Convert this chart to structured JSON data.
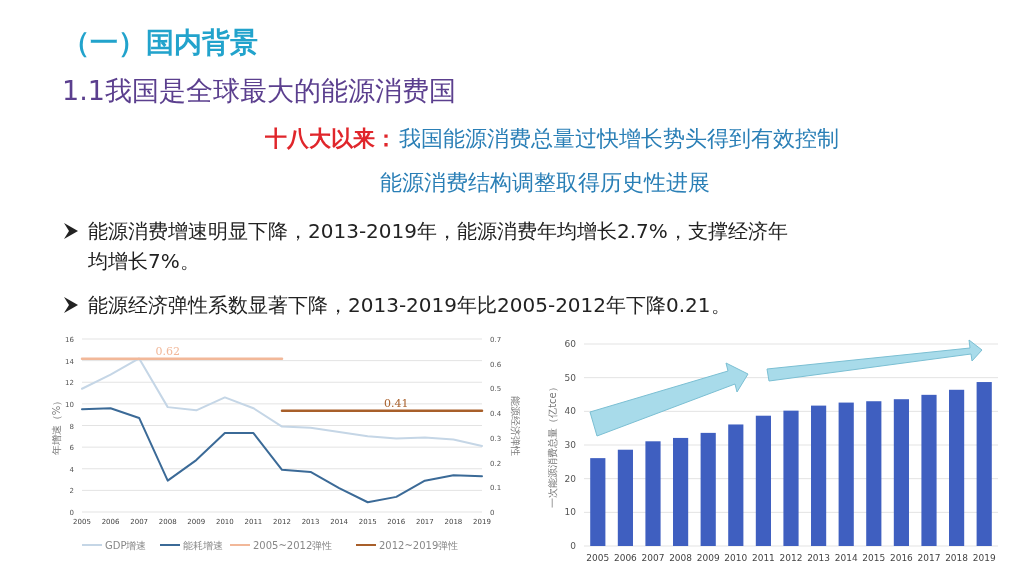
{
  "chart_data": [
    {
      "type": "line",
      "title": "（一）国内背景",
      "subtitle": "1.1我国是全球最大的能源消费国",
      "annotations": [
        "十八大以来：",
        "我国能源消费总量过快增长势头得到有效控制",
        "能源消费结构调整取得历史性进展",
        "能源消费增速明显下降，2013-2019年，能源消费年均增长2.7%，支撑经济年均增长7%。",
        "能源经济弹性系数显著下降，2013-2019年比2005-2012年下降0.21。"
      ],
      "categories": [
        "2005",
        "2006",
        "2007",
        "2008",
        "2009",
        "2010",
        "2011",
        "2012",
        "2013",
        "2014",
        "2015",
        "2016",
        "2017",
        "2018",
        "2019"
      ],
      "ylabel": "年增速（%）",
      "y2label": "能源经济弹性",
      "ylim": [
        0,
        16
      ],
      "yticks": [
        0,
        2,
        4,
        6,
        8,
        10,
        12,
        14,
        16
      ],
      "y2lim": [
        0,
        0.7
      ],
      "y2ticks": [
        0,
        0.1,
        0.2,
        0.3,
        0.4,
        0.5,
        0.6,
        0.7
      ],
      "grid": "y",
      "legend": "bottom",
      "series": [
        {
          "name": "GDP增速",
          "color": "#c5d6e6",
          "values": [
            11.4,
            12.7,
            14.2,
            9.7,
            9.4,
            10.6,
            9.6,
            7.9,
            7.8,
            7.4,
            7.0,
            6.8,
            6.9,
            6.7,
            6.1
          ]
        },
        {
          "name": "能耗增速",
          "color": "#3b6a97",
          "values": [
            9.5,
            9.6,
            8.7,
            2.9,
            4.8,
            7.3,
            7.3,
            3.9,
            3.7,
            2.2,
            0.9,
            1.4,
            2.9,
            3.4,
            3.3
          ]
        },
        {
          "name": "2005~2012弹性",
          "color": "#f2b899",
          "axis": "y2",
          "values": [
            0.62,
            0.62,
            0.62,
            0.62,
            0.62,
            0.62,
            0.62,
            0.62,
            null,
            null,
            null,
            null,
            null,
            null,
            null
          ],
          "value_labels": [
            null,
            null,
            null,
            "0.62",
            null,
            null,
            null,
            null,
            null,
            null,
            null,
            null,
            null,
            null,
            null
          ]
        },
        {
          "name": "2012~2019弹性",
          "color": "#a85f2a",
          "axis": "y2",
          "values": [
            null,
            null,
            null,
            null,
            null,
            null,
            null,
            0.41,
            0.41,
            0.41,
            0.41,
            0.41,
            0.41,
            0.41,
            0.41
          ],
          "value_labels": [
            null,
            null,
            null,
            null,
            null,
            null,
            null,
            null,
            null,
            null,
            null,
            "0.41",
            null,
            null,
            null
          ]
        }
      ]
    },
    {
      "type": "bar",
      "categories": [
        "2005",
        "2006",
        "2007",
        "2008",
        "2009",
        "2010",
        "2011",
        "2012",
        "2013",
        "2014",
        "2015",
        "2016",
        "2017",
        "2018",
        "2019"
      ],
      "values": [
        26.1,
        28.6,
        31.1,
        32.1,
        33.6,
        36.1,
        38.7,
        40.2,
        41.7,
        42.6,
        43.0,
        43.6,
        44.9,
        46.4,
        48.7
      ],
      "color": "#3f5fc0",
      "ylabel": "一次能源消费总量（亿tce）",
      "ylim": [
        0,
        60
      ],
      "yticks": [
        0,
        10,
        20,
        30,
        40,
        50,
        60
      ],
      "grid": "y"
    }
  ]
}
